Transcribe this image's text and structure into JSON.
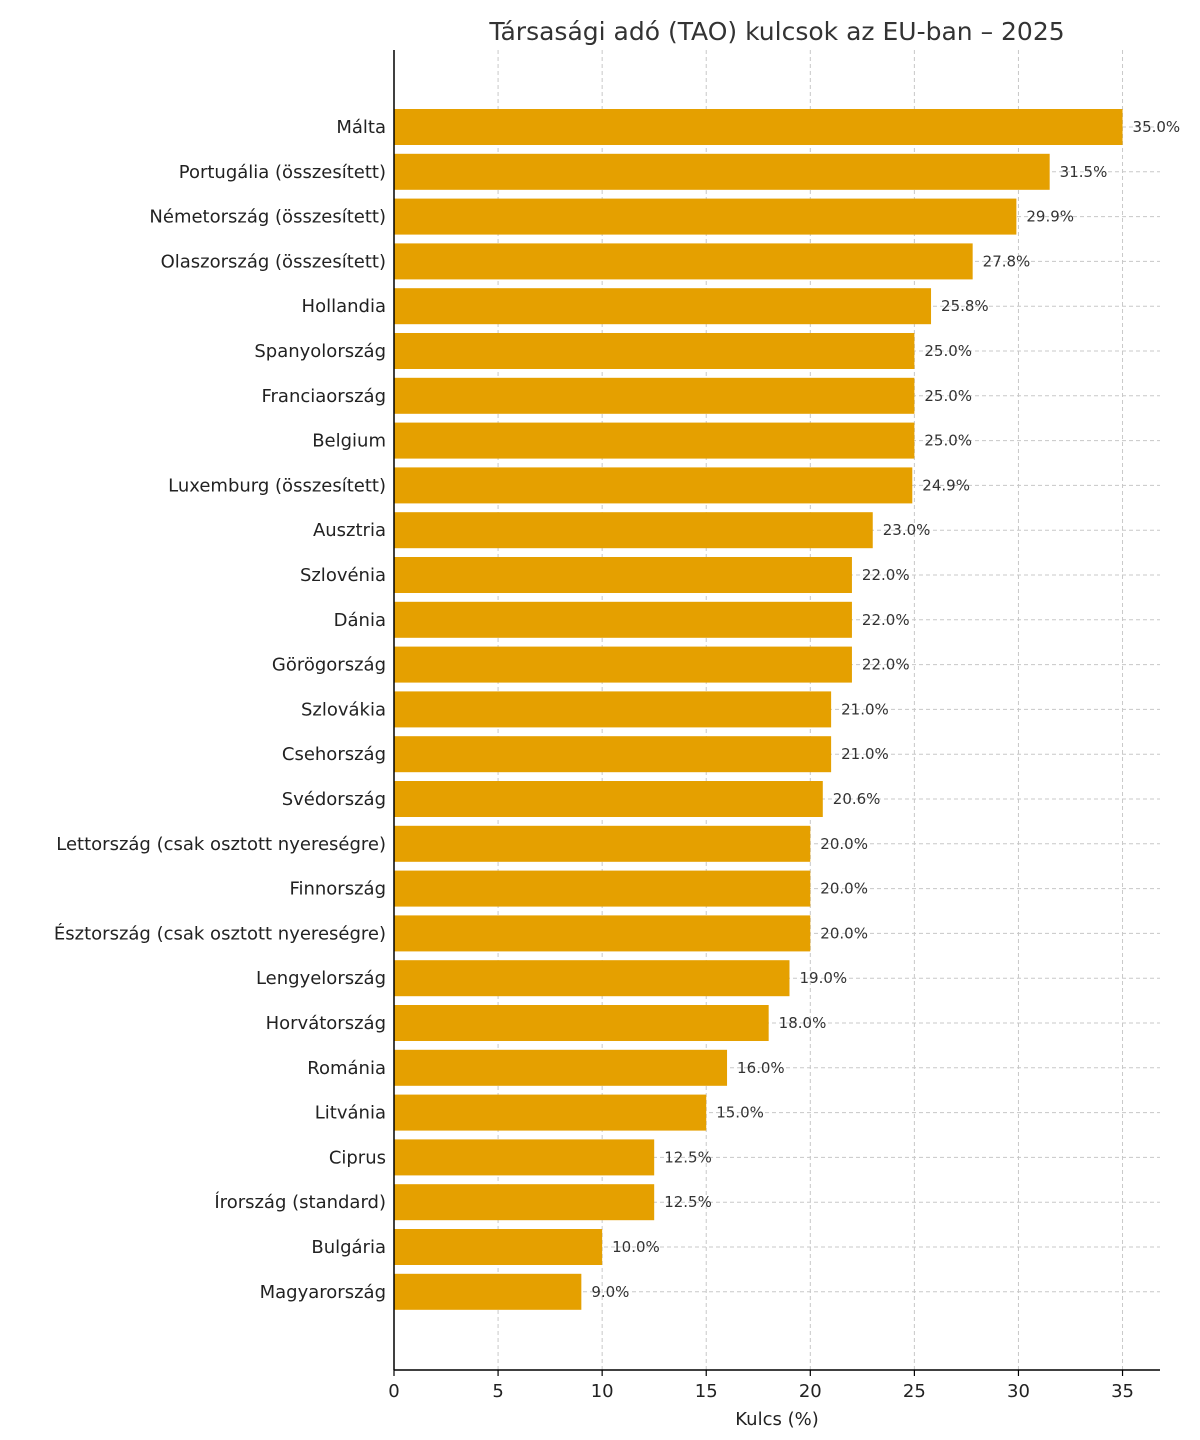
{
  "chart_data": {
    "type": "bar",
    "orientation": "horizontal",
    "title": "Társasági adó (TAO) kulcsok az EU-ban – 2025",
    "xlabel": "Kulcs (%)",
    "ylabel": "",
    "xlim": [
      0,
      36.8
    ],
    "xticks": [
      0,
      5,
      10,
      15,
      20,
      25,
      30,
      35
    ],
    "grid": true,
    "bar_color": "#e5a000",
    "categories": [
      "Málta",
      "Portugália (összesített)",
      "Németország (összesített)",
      "Olaszország (összesített)",
      "Hollandia",
      "Spanyolország",
      "Franciaország",
      "Belgium",
      "Luxemburg (összesített)",
      "Ausztria",
      "Szlovénia",
      "Dánia",
      "Görögország",
      "Szlovákia",
      "Csehország",
      "Svédország",
      "Lettország (csak osztott nyereségre)",
      "Finnország",
      "Észtország (csak osztott nyereségre)",
      "Lengyelország",
      "Horvátország",
      "Románia",
      "Litvánia",
      "Ciprus",
      "Írország (standard)",
      "Bulgária",
      "Magyarország"
    ],
    "values": [
      35.0,
      31.5,
      29.9,
      27.8,
      25.8,
      25.0,
      25.0,
      25.0,
      24.9,
      23.0,
      22.0,
      22.0,
      22.0,
      21.0,
      21.0,
      20.6,
      20.0,
      20.0,
      20.0,
      19.0,
      18.0,
      16.0,
      15.0,
      12.5,
      12.5,
      10.0,
      9.0
    ],
    "data_labels": [
      "35.0%",
      "31.5%",
      "29.9%",
      "27.8%",
      "25.8%",
      "25.0%",
      "25.0%",
      "25.0%",
      "24.9%",
      "23.0%",
      "22.0%",
      "22.0%",
      "22.0%",
      "21.0%",
      "21.0%",
      "20.6%",
      "20.0%",
      "20.0%",
      "20.0%",
      "19.0%",
      "18.0%",
      "16.0%",
      "15.0%",
      "12.5%",
      "12.5%",
      "10.0%",
      "9.0%"
    ]
  }
}
